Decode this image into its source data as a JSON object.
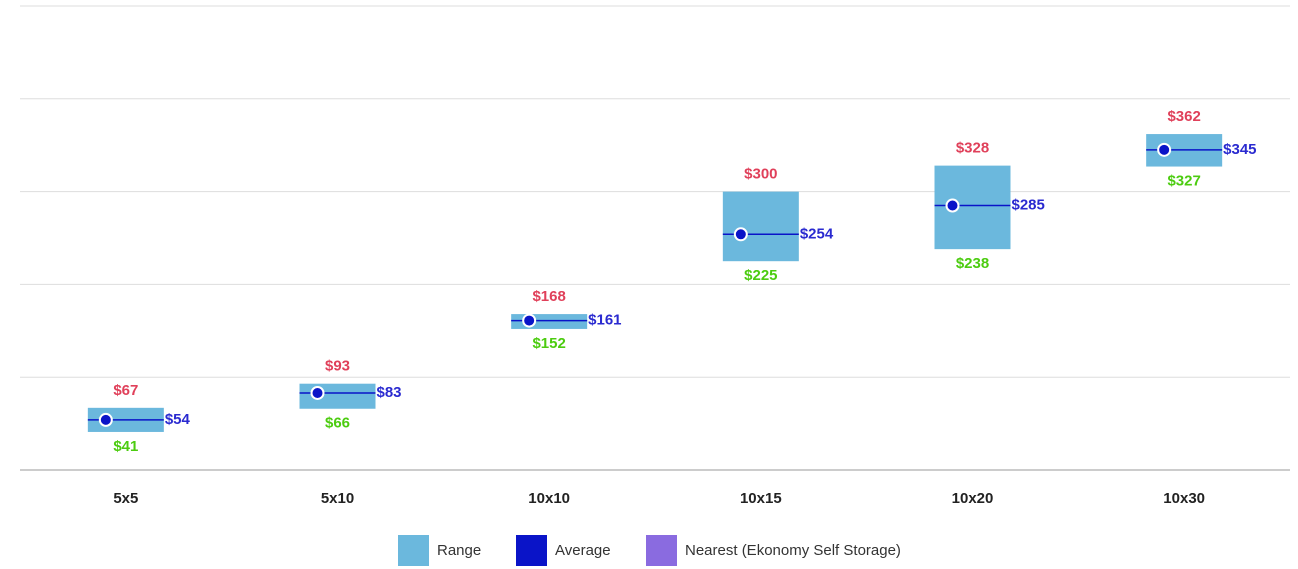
{
  "chart_data": {
    "type": "range",
    "categories": [
      "5x5",
      "5x10",
      "10x10",
      "10x15",
      "10x20",
      "10x30"
    ],
    "ylim": [
      0,
      500
    ],
    "yticks": [
      0,
      100,
      200,
      300,
      400,
      500
    ],
    "grid": true,
    "series": [
      {
        "name": "Range",
        "color": "#6bb8dd",
        "low": [
          41,
          66,
          152,
          225,
          238,
          327
        ],
        "low_labels": [
          "$41",
          "$66",
          "$152",
          "$225",
          "$238",
          "$327"
        ],
        "high": [
          67,
          93,
          168,
          300,
          328,
          362
        ],
        "high_labels": [
          "$67",
          "$93",
          "$168",
          "$300",
          "$328",
          "$362"
        ]
      },
      {
        "name": "Average",
        "color": "#0a14c8",
        "values": [
          54,
          83,
          161,
          254,
          285,
          345
        ],
        "value_labels": [
          "$54",
          "$83",
          "$161",
          "$254",
          "$285",
          "$345"
        ]
      },
      {
        "name": "Nearest (Ekonomy Self Storage)",
        "color": "#8a6be0"
      }
    ]
  }
}
